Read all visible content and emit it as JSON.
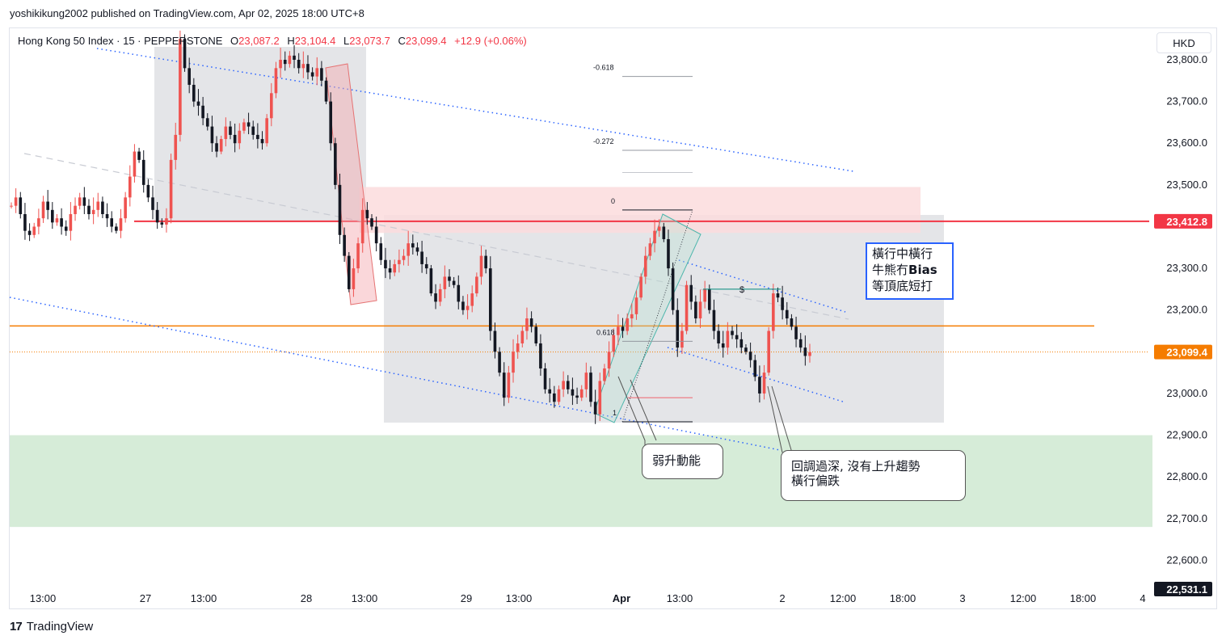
{
  "header": {
    "publisher": "yoshikikung2002 published on TradingView.com, Apr 02, 2025 18:00 UTC+8"
  },
  "legend": {
    "symbol": "Hong Kong 50 Index · 15 · PEPPERSTONE",
    "open_label": "O",
    "open": "23,087.2",
    "high_label": "H",
    "high": "23,104.4",
    "low_label": "L",
    "low": "23,073.7",
    "close_label": "C",
    "close": "23,099.4",
    "change": "+12.9 (+0.06%)"
  },
  "currency": "HKD",
  "branding": {
    "name": "TradingView"
  },
  "colors": {
    "up": "#ef5350",
    "down": "#131722",
    "resistance_line": "#f23645",
    "orange_line": "#f57c00",
    "channel": "#2962ff",
    "demand_zone": "#d6ecd8",
    "supply_zone": "#fcdcdd",
    "range_box": "#e4e5e8"
  },
  "chart_data": {
    "type": "candlestick",
    "symbol": "Hong Kong 50 Index",
    "interval": "15",
    "exchange": "PEPPERSTONE",
    "y_range": [
      22500,
      23900
    ],
    "y_ticks": [
      "23,800.0",
      "23,700.0",
      "23,600.0",
      "23,500.0",
      "23,300.0",
      "23,200.0",
      "23,000.0",
      "22,900.0",
      "22,800.0",
      "22,700.0",
      "22,600.0"
    ],
    "y_tick_values": [
      23800,
      23700,
      23600,
      23500,
      23300,
      23200,
      23000,
      22900,
      22800,
      22700,
      22600
    ],
    "x_ticks": [
      "13:00",
      "27",
      "13:00",
      "28",
      "13:00",
      "29",
      "13:00",
      "Apr",
      "13:00",
      "2",
      "12:00",
      "18:00",
      "3",
      "12:00",
      "18:00",
      "4"
    ],
    "price_labels": [
      {
        "text": "23,412.8",
        "value": 23412.8,
        "color": "#f23645"
      },
      {
        "text": "23,099.4",
        "value": 23099.4,
        "color": "#f57c00"
      },
      {
        "text": "22,531.1",
        "value": 22531.1,
        "color": "#131722"
      }
    ],
    "levels": {
      "resistance": 23412.8,
      "orange": 23162,
      "last": 23099.4
    },
    "zones": {
      "demand": [
        22680,
        22900
      ],
      "supply": [
        23385,
        23495
      ]
    },
    "fib": [
      {
        "label": "-0.618",
        "value": 23760
      },
      {
        "label": "-0.272",
        "value": 23583
      },
      {
        "label": "0",
        "value": 23440
      },
      {
        "label": "0.618",
        "value": 23125
      },
      {
        "label": "1",
        "value": 22932
      }
    ],
    "series": [
      {
        "name": "price",
        "values": [
          23450,
          23470,
          23430,
          23390,
          23380,
          23400,
          23420,
          23460,
          23440,
          23410,
          23420,
          23400,
          23390,
          23430,
          23450,
          23470,
          23450,
          23430,
          23440,
          23460,
          23430,
          23420,
          23400,
          23390,
          23420,
          23470,
          23520,
          23580,
          23560,
          23500,
          23470,
          23440,
          23410,
          23405,
          23420,
          23560,
          23620,
          23850,
          23780,
          23740,
          23700,
          23690,
          23660,
          23640,
          23600,
          23580,
          23610,
          23640,
          23620,
          23600,
          23630,
          23650,
          23640,
          23620,
          23610,
          23600,
          23660,
          23720,
          23780,
          23800,
          23790,
          23810,
          23800,
          23780,
          23790,
          23770,
          23760,
          23780,
          23750,
          23700,
          23600,
          23500,
          23380,
          23330,
          23250,
          23300,
          23360,
          23440,
          23420,
          23400,
          23360,
          23320,
          23300,
          23290,
          23310,
          23320,
          23330,
          23360,
          23350,
          23340,
          23310,
          23300,
          23240,
          23220,
          23250,
          23280,
          23270,
          23260,
          23220,
          23200,
          23210,
          23240,
          23280,
          23330,
          23300,
          23150,
          23100,
          23050,
          22990,
          23050,
          23100,
          23120,
          23150,
          23180,
          23160,
          23120,
          23060,
          23010,
          23000,
          22980,
          23010,
          23030,
          23010,
          22995,
          22990,
          23010,
          23050,
          22980,
          22950,
          23030,
          23060,
          23100,
          23140,
          23160,
          23150,
          23180,
          23190,
          23230,
          23280,
          23330,
          23360,
          23390,
          23400,
          23370,
          23300,
          23200,
          23110,
          23150,
          23260,
          23220,
          23180,
          23220,
          23250,
          23200,
          23150,
          23120,
          23110,
          23150,
          23140,
          23130,
          23110,
          23100,
          23080,
          23040,
          23000,
          23050,
          23150,
          23240,
          23230,
          23200,
          23180,
          23160,
          23130,
          23110,
          23090,
          23099
        ]
      }
    ],
    "annotations": [
      {
        "text": "弱升動能"
      },
      {
        "text": "回調過深, 沒有上升趨勢\n橫行偏跌"
      },
      {
        "text": "橫行中橫行\n牛熊冇Bias\n等頂底短打"
      },
      {
        "text": "$"
      }
    ]
  },
  "notes": {
    "weak_momentum": "弱升動能",
    "deep_pullback_1": "回調過深, 沒有上升趨勢",
    "deep_pullback_2": "橫行偏跌",
    "bias_1": "橫行中橫行",
    "bias_2a": "牛熊冇",
    "bias_2b": "Bias",
    "bias_3": "等頂底短打"
  }
}
